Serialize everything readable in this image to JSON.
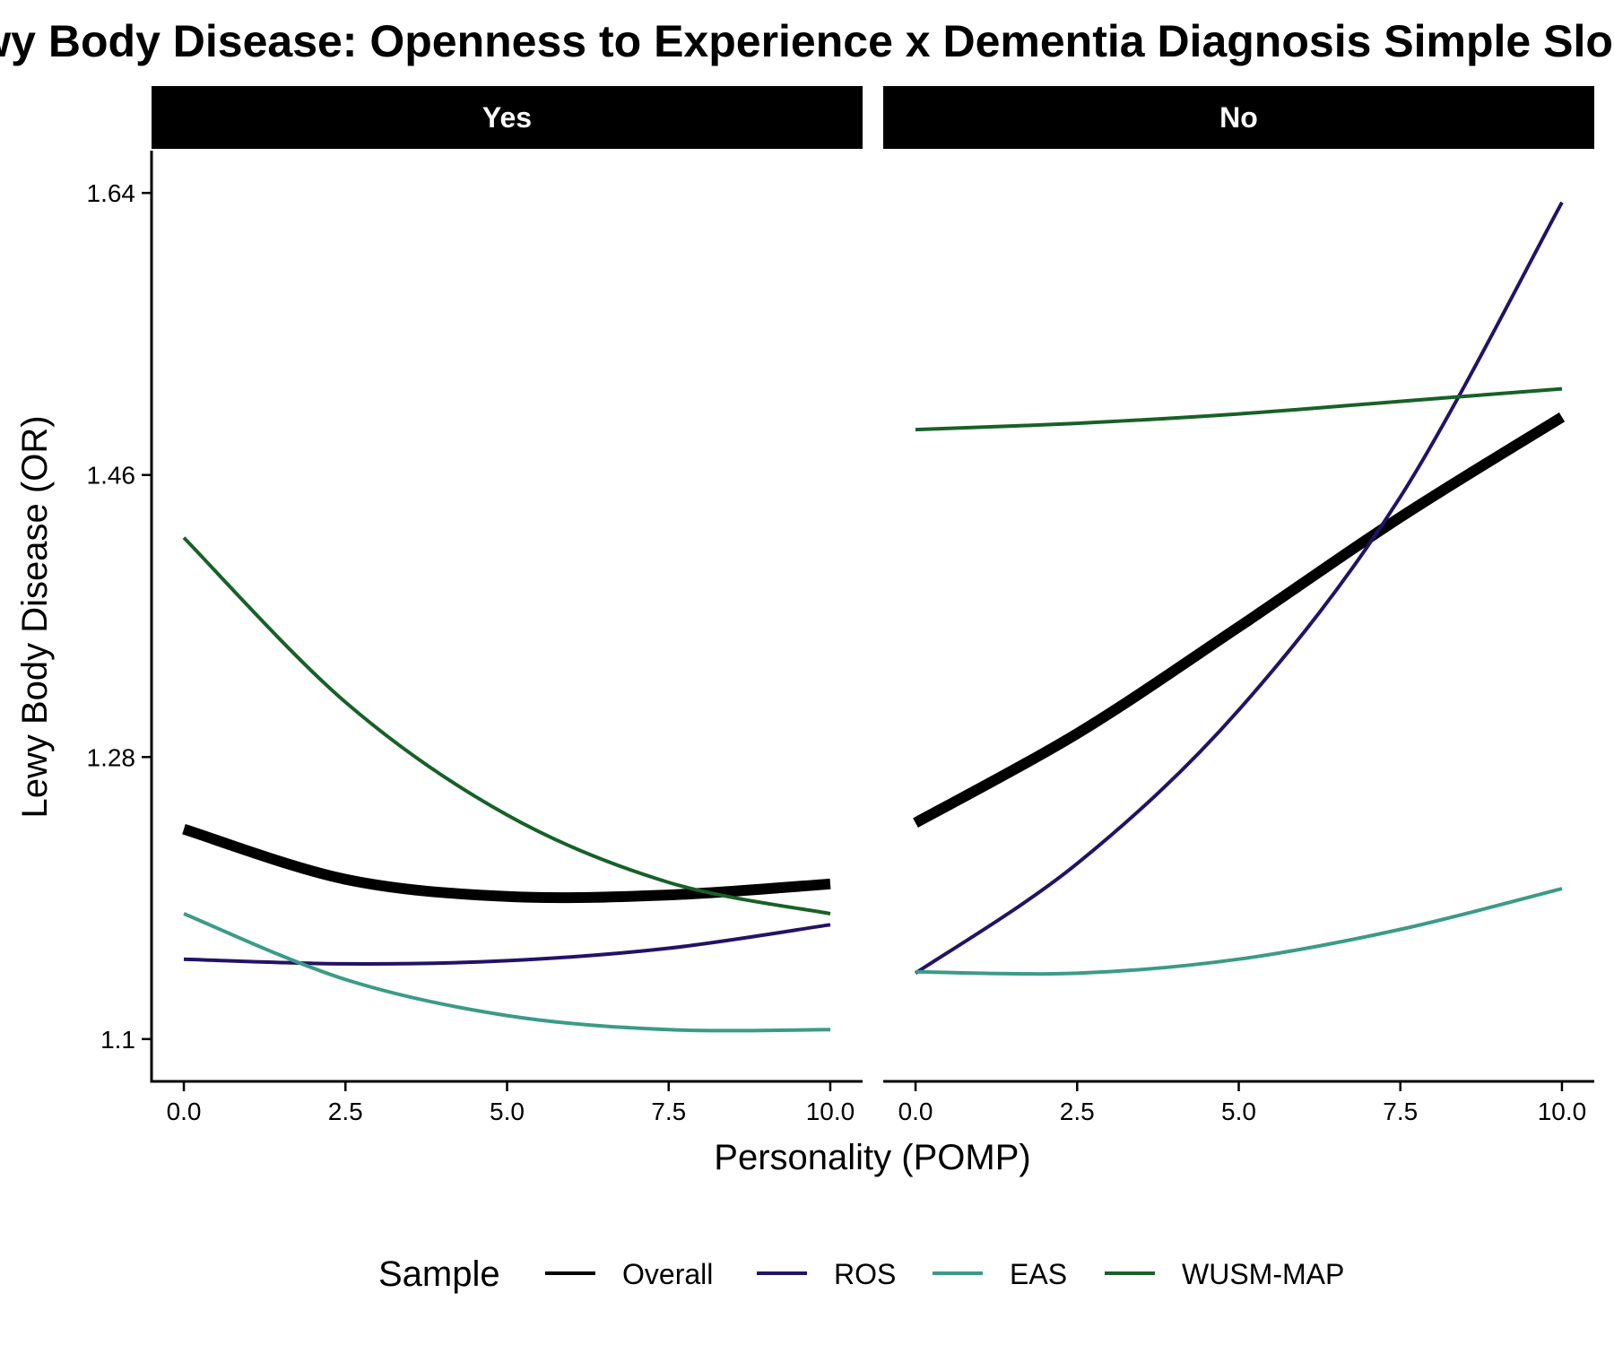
{
  "chart_data": {
    "type": "line",
    "title": "Lewy Body Disease: Openness to Experience x Dementia Diagnosis Simple Slopes",
    "xlabel": "Personality (POMP)",
    "ylabel": "Lewy Body Disease (OR)",
    "xlim": [
      -0.5,
      10.5
    ],
    "ylim": [
      1.073,
      1.667
    ],
    "x_ticks": [
      0,
      2.5,
      5,
      7.5,
      10
    ],
    "x_tick_labels": [
      "0.0",
      "2.5",
      "5.0",
      "7.5",
      "10.0"
    ],
    "y_ticks": [
      1.1,
      1.28,
      1.46,
      1.64
    ],
    "y_tick_labels": [
      "1.1",
      "1.28",
      "1.46",
      "1.64"
    ],
    "grid": false,
    "legend_title": "Sample",
    "legend_position": "bottom",
    "facets": [
      {
        "label": "Yes",
        "series": [
          {
            "name": "Overall",
            "x": [
              0,
              2.5,
              5,
              7.5,
              10
            ],
            "y": [
              1.234,
              1.202,
              1.191,
              1.192,
              1.199
            ]
          },
          {
            "name": "ROS",
            "x": [
              0,
              2.5,
              5,
              7.5,
              10
            ],
            "y": [
              1.151,
              1.148,
              1.15,
              1.158,
              1.173
            ]
          },
          {
            "name": "EAS",
            "x": [
              0,
              2.5,
              5,
              7.5,
              10
            ],
            "y": [
              1.18,
              1.138,
              1.115,
              1.106,
              1.106
            ]
          },
          {
            "name": "WUSM-MAP",
            "x": [
              0,
              2.5,
              5,
              7.5,
              10
            ],
            "y": [
              1.42,
              1.315,
              1.243,
              1.2,
              1.18
            ]
          }
        ]
      },
      {
        "label": "No",
        "series": [
          {
            "name": "Overall",
            "x": [
              0,
              2.5,
              5,
              7.5,
              10
            ],
            "y": [
              1.238,
              1.295,
              1.363,
              1.433,
              1.497
            ]
          },
          {
            "name": "ROS",
            "x": [
              0,
              2.5,
              5,
              7.5,
              10
            ],
            "y": [
              1.142,
              1.212,
              1.31,
              1.446,
              1.634
            ]
          },
          {
            "name": "EAS",
            "x": [
              0,
              2.5,
              5,
              7.5,
              10
            ],
            "y": [
              1.143,
              1.142,
              1.151,
              1.17,
              1.196
            ]
          },
          {
            "name": "WUSM-MAP",
            "x": [
              0,
              2.5,
              5,
              7.5,
              10
            ],
            "y": [
              1.489,
              1.493,
              1.499,
              1.507,
              1.515
            ]
          }
        ]
      }
    ]
  },
  "colors": {
    "Overall": "#000000",
    "ROS": "#231266",
    "EAS": "#3b9b87",
    "WUSM-MAP": "#176127"
  },
  "line_widths": {
    "Overall": 12,
    "ROS": 4,
    "EAS": 4,
    "WUSM-MAP": 4
  }
}
